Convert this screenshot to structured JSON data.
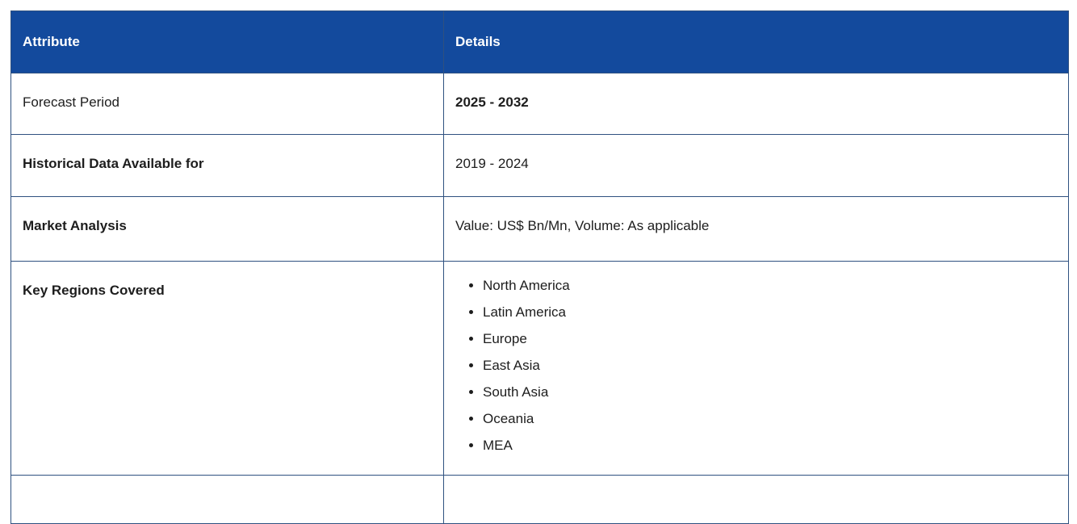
{
  "table": {
    "header": {
      "attribute": "Attribute",
      "details": "Details"
    },
    "rows": [
      {
        "attribute": "Forecast Period",
        "detail": "2025 - 2032"
      },
      {
        "attribute": "Historical Data Available for",
        "detail": "2019 - 2024"
      },
      {
        "attribute": "Market Analysis",
        "detail": "Value: US$ Bn/Mn, Volume: As applicable"
      },
      {
        "attribute": "Key Regions Covered",
        "detail_list": [
          "North America",
          "Latin America",
          "Europe",
          "East Asia",
          "South Asia",
          "Oceania",
          "MEA"
        ]
      }
    ],
    "colors": {
      "header_bg": "#134A9D",
      "header_text": "#FFFFFF",
      "border": "#2F5180",
      "body_text": "#1D1D1D"
    }
  }
}
